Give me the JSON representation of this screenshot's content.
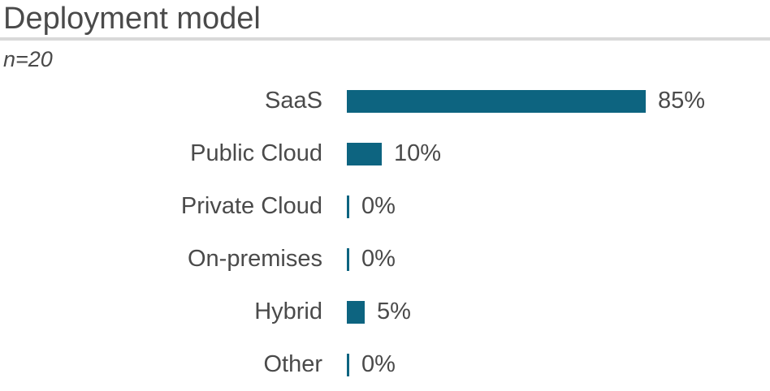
{
  "header": {
    "title": "Deployment model",
    "sample_size": "n=20"
  },
  "colors": {
    "bar": "#0d6480",
    "text": "#4a4a4a",
    "divider": "#d9d9d9",
    "background": "#ffffff"
  },
  "chart_data": {
    "type": "bar",
    "orientation": "horizontal",
    "title": "Deployment model",
    "subtitle": "n=20",
    "categories": [
      "SaaS",
      "Public Cloud",
      "Private Cloud",
      "On-premises",
      "Hybrid",
      "Other"
    ],
    "values": [
      85,
      10,
      0,
      0,
      5,
      0
    ],
    "value_labels": [
      "85%",
      "10%",
      "0%",
      "0%",
      "5%",
      "0%"
    ],
    "unit": "%",
    "xlim": [
      0,
      100
    ],
    "grid": false,
    "legend": false,
    "value_label_position": "end-of-bar"
  }
}
